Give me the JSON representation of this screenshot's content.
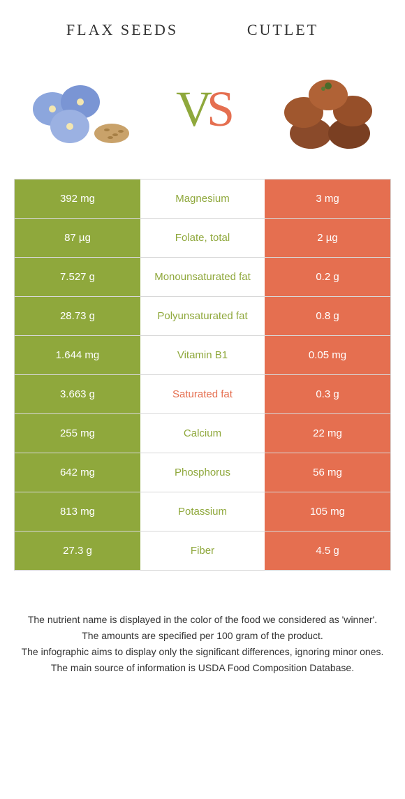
{
  "header": {
    "leftTitle": "Flax seeds",
    "rightTitle": "Cutlet"
  },
  "vs": {
    "v": "V",
    "s": "S"
  },
  "colors": {
    "green": "#8fa83c",
    "orange": "#e56f50",
    "midGreenText": "#8fa83c",
    "midOrangeText": "#e56f50"
  },
  "nutrients": [
    {
      "name": "Magnesium",
      "left": "392 mg",
      "right": "3 mg",
      "winner": "left"
    },
    {
      "name": "Folate, total",
      "left": "87 µg",
      "right": "2 µg",
      "winner": "left"
    },
    {
      "name": "Monounsaturated fat",
      "left": "7.527 g",
      "right": "0.2 g",
      "winner": "left"
    },
    {
      "name": "Polyunsaturated fat",
      "left": "28.73 g",
      "right": "0.8 g",
      "winner": "left"
    },
    {
      "name": "Vitamin B1",
      "left": "1.644 mg",
      "right": "0.05 mg",
      "winner": "left"
    },
    {
      "name": "Saturated fat",
      "left": "3.663 g",
      "right": "0.3 g",
      "winner": "right"
    },
    {
      "name": "Calcium",
      "left": "255 mg",
      "right": "22 mg",
      "winner": "left"
    },
    {
      "name": "Phosphorus",
      "left": "642 mg",
      "right": "56 mg",
      "winner": "left"
    },
    {
      "name": "Potassium",
      "left": "813 mg",
      "right": "105 mg",
      "winner": "left"
    },
    {
      "name": "Fiber",
      "left": "27.3 g",
      "right": "4.5 g",
      "winner": "left"
    }
  ],
  "footer": {
    "l1": "The nutrient name is displayed in the color of the food we considered as 'winner'.",
    "l2": "The amounts are specified per 100 gram of the product.",
    "l3": "The infographic aims to display only the significant differences, ignoring minor ones.",
    "l4": "The main source of information is USDA Food Composition Database."
  }
}
